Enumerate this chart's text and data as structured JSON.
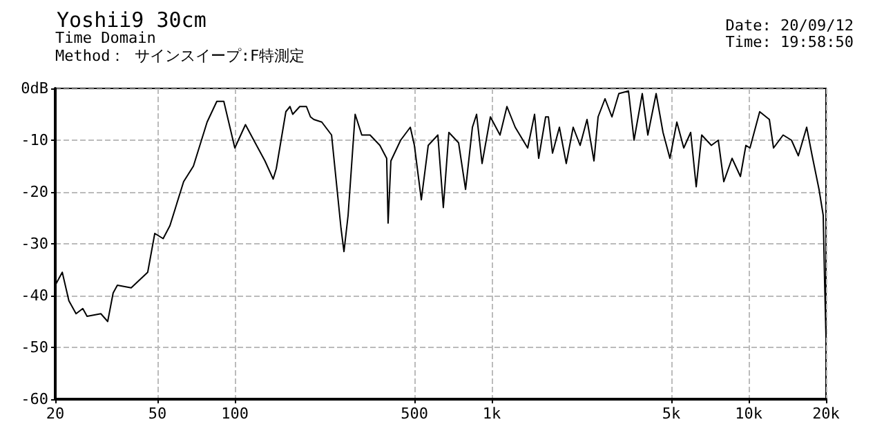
{
  "chart_data": {
    "type": "line",
    "title": "Yoshii9 30cm",
    "subtitle": "Time Domain",
    "annotations": [
      "Method： サインスイープ:F特測定",
      "Date: 20/09/12",
      "Time: 19:58:50"
    ],
    "log": "x",
    "grid": true,
    "marker": "none",
    "line_style": "solid",
    "xlim": [
      20,
      20000
    ],
    "xticks": [
      20,
      50,
      100,
      500,
      {
        "value": 1000,
        "label": "1k"
      },
      {
        "value": 5000,
        "label": "5k"
      },
      {
        "value": 10000,
        "label": "10k"
      },
      {
        "value": 20000,
        "label": "20k"
      }
    ],
    "ylim": [
      -60,
      0
    ],
    "yticks": [
      {
        "value": 0,
        "label": "0dB"
      },
      -10,
      -20,
      -30,
      -40,
      -50,
      -60
    ],
    "series": [
      {
        "color": "#000000",
        "x": [
          20,
          21.3,
          22.6,
          24.1,
          25.6,
          26.6,
          30.1,
          32,
          33.6,
          34.9,
          39.5,
          45.8,
          48.8,
          52.6,
          55.9,
          63.2,
          69,
          78,
          85.1,
          90.6,
          100,
          110,
          120,
          131,
          141,
          145,
          158,
          164,
          168,
          179,
          181,
          190,
          197,
          203,
          218,
          238,
          259,
          266,
          276,
          294,
          312,
          336,
          367,
          390,
          395,
          405,
          442,
          482,
          500,
          532,
          566,
          617,
          648,
          681,
          743,
          791,
          841,
          873,
          917,
          988,
          1077,
          1146,
          1234,
          1380,
          1468,
          1523,
          1621,
          1662,
          1724,
          1834,
          1950,
          2075,
          2208,
          2349,
          2500,
          2594,
          2760,
          2937,
          3124,
          3406,
          3580,
          3854,
          4051,
          4364,
          4642,
          4938,
          5254,
          5590,
          5948,
          6250,
          6566,
          7160,
          7617,
          8004,
          8618,
          9289,
          9756,
          10120,
          11040,
          12040,
          12500,
          13620,
          14680,
          15610,
          16820,
          17670,
          18790,
          19510,
          19750,
          20000
        ],
        "values": [
          -38,
          -35.5,
          -41,
          -43.5,
          -42.5,
          -44,
          -43.5,
          -45,
          -39.5,
          -38,
          -38.5,
          -35.5,
          -28,
          -29,
          -26.5,
          -18,
          -15,
          -6.5,
          -2.5,
          -2.5,
          -11.5,
          -7,
          -10.5,
          -14,
          -17.5,
          -15.5,
          -4.5,
          -3.5,
          -5,
          -3.5,
          -3.5,
          -3.5,
          -5.5,
          -6,
          -6.5,
          -9,
          -27,
          -31.5,
          -24.5,
          -5,
          -9,
          -9,
          -11,
          -13.5,
          -26,
          -14,
          -10,
          -7.5,
          -11,
          -21.5,
          -11,
          -9,
          -23,
          -8.5,
          -10.5,
          -19.5,
          -7.5,
          -5,
          -14.5,
          -5.5,
          -9,
          -3.5,
          -7.5,
          -11.5,
          -5,
          -13.5,
          -5.5,
          -5.5,
          -12.5,
          -7.5,
          -14.5,
          -7.5,
          -11,
          -6,
          -14,
          -5.5,
          -2,
          -5.5,
          -1,
          -0.5,
          -10,
          -1,
          -9,
          -1,
          -8.5,
          -13.5,
          -6.5,
          -11.5,
          -8.5,
          -19,
          -9,
          -11,
          -10,
          -18,
          -13.5,
          -17,
          -11,
          -11.5,
          -4.5,
          -6,
          -11.5,
          -9,
          -10,
          -13,
          -7.5,
          -13,
          -19.5,
          -24.5,
          -37,
          -48
        ]
      }
    ]
  }
}
